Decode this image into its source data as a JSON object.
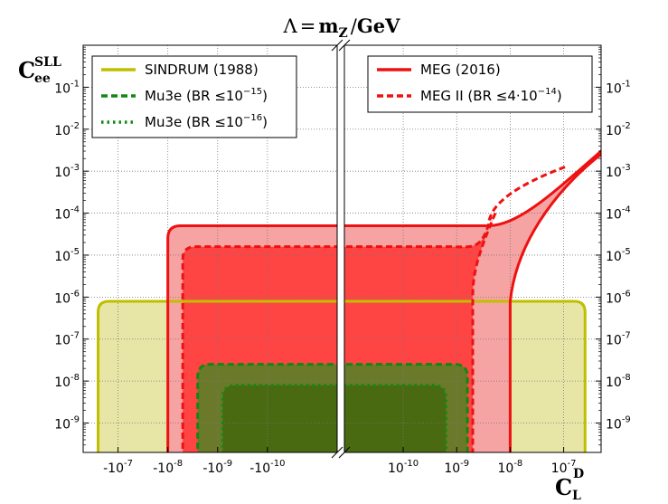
{
  "chart_data": {
    "type": "area",
    "title": "Λ = m_Z / GeV",
    "title_parts": {
      "lambda": "Λ",
      "eq": "=",
      "m": "m",
      "m_sub": "Z",
      "slash": "/",
      "unit": "GeV"
    },
    "ylabel": {
      "base": "C",
      "sup": "SLL",
      "sub": "ee"
    },
    "xlabel": {
      "base": "C",
      "sup": "D",
      "sub": "L"
    },
    "y_axis": {
      "scale": "log",
      "ylim_log10": [
        -9.7,
        0.0
      ],
      "ticks": [
        {
          "exp": -1,
          "label_base": "10",
          "label_exp": "-1"
        },
        {
          "exp": -2,
          "label_base": "10",
          "label_exp": "-2"
        },
        {
          "exp": -3,
          "label_base": "10",
          "label_exp": "-3"
        },
        {
          "exp": -4,
          "label_base": "10",
          "label_exp": "-4"
        },
        {
          "exp": -5,
          "label_base": "10",
          "label_exp": "-5"
        },
        {
          "exp": -6,
          "label_base": "10",
          "label_exp": "-6"
        },
        {
          "exp": -7,
          "label_base": "10",
          "label_exp": "-7"
        },
        {
          "exp": -8,
          "label_base": "10",
          "label_exp": "-8"
        },
        {
          "exp": -9,
          "label_base": "10",
          "label_exp": "-9"
        }
      ]
    },
    "x_axis": {
      "scale": "symlog-broken",
      "left_panel": {
        "range_log10_abs": [
          -6.3,
          -11.4
        ],
        "ticks": [
          {
            "exp": -7,
            "label_prefix": "-10",
            "label_exp": "-7"
          },
          {
            "exp": -8,
            "label_prefix": "-10",
            "label_exp": "-8"
          },
          {
            "exp": -9,
            "label_prefix": "-10",
            "label_exp": "-9"
          },
          {
            "exp": -10,
            "label_prefix": "-10",
            "label_exp": "-10"
          }
        ]
      },
      "right_panel": {
        "range_log10_abs": [
          -11.1,
          -6.3
        ],
        "ticks": [
          {
            "exp": -10,
            "label_prefix": "10",
            "label_exp": "-10"
          },
          {
            "exp": -9,
            "label_prefix": "10",
            "label_exp": "-9"
          },
          {
            "exp": -8,
            "label_prefix": "10",
            "label_exp": "-8"
          },
          {
            "exp": -7,
            "label_prefix": "10",
            "label_exp": "-7"
          }
        ]
      }
    },
    "grid": true,
    "series": [
      {
        "name": "SINDRUM (1988)",
        "style": "solid",
        "color": "#bfbf00",
        "fill": "#e8e6a6",
        "bound_y_log10": -6.1,
        "left_x_log10_abs": -6.6,
        "right_x_log10_abs": -6.6
      },
      {
        "name": "MEG (2016)",
        "style": "solid",
        "color": "#ee1111",
        "fill": "#f5a3a3",
        "bound_y_log10": -4.3,
        "left_x_log10_abs": -8.0,
        "right_x_log10_abs": -8.0,
        "rise_start_x_log10": -8.4,
        "end_y_log10_at_right_edge": -2.6
      },
      {
        "name": "MEG II (BR ≤ 4·10^-14)",
        "style": "dashed",
        "color": "#ee1111",
        "fill": "#ff4444",
        "bound_y_log10": -4.8,
        "left_x_log10_abs": -8.3,
        "right_x_log10_abs": -8.7
      },
      {
        "name": "Mu3e (BR ≤ 10^-15)",
        "style": "dashed",
        "color": "#118811",
        "fill": "#6b7a2a",
        "bound_y_log10": -7.6,
        "left_x_log10_abs": -8.6,
        "right_x_log10_abs": -8.8
      },
      {
        "name": "Mu3e (BR ≤ 10^-16)",
        "style": "dotted",
        "color": "#118811",
        "fill": "#4a6a12",
        "bound_y_log10": -8.1,
        "left_x_log10_abs": -9.1,
        "right_x_log10_abs": -9.2
      }
    ],
    "legends": [
      {
        "placement": "top-left",
        "entries": [
          {
            "text": "SINDRUM (1988)",
            "color": "#bfbf00",
            "style": "solid"
          },
          {
            "text": "Mu3e (BR ≤10",
            "exp": "−15",
            "close": ")",
            "color": "#118811",
            "style": "dashed"
          },
          {
            "text": "Mu3e (BR ≤10",
            "exp": "−16",
            "close": ")",
            "color": "#118811",
            "style": "dotted"
          }
        ]
      },
      {
        "placement": "top-right",
        "entries": [
          {
            "text": "MEG (2016)",
            "color": "#ee1111",
            "style": "solid"
          },
          {
            "text": "MEG II (BR ≤4·10",
            "exp": "−14",
            "close": ")",
            "color": "#ee1111",
            "style": "dashed"
          }
        ]
      }
    ]
  }
}
